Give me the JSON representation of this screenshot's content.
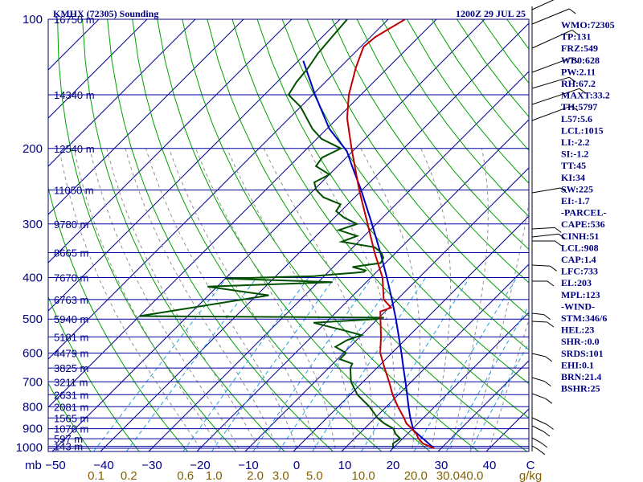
{
  "chart_data": {
    "type": "skew-t sounding",
    "title_left": "KMHX (72305) Sounding",
    "title_right": "1200Z 29 JUL 25",
    "pressure_unit_label": "mb",
    "mixing_ratio_unit_label": "g/kg",
    "plim": [
      1000,
      100
    ],
    "pressure_levels": [
      1000,
      900,
      800,
      700,
      600,
      500,
      400,
      300,
      200,
      100
    ],
    "pressure_labels": [
      "1000",
      "900",
      "800",
      "700",
      "600",
      "500",
      "400",
      "300",
      "200",
      "100"
    ],
    "height_levels": [
      {
        "p": 990,
        "label": "143 m"
      },
      {
        "p": 950,
        "label": "597 m"
      },
      {
        "p": 900,
        "label": "1070 m"
      },
      {
        "p": 850,
        "label": "1565 m"
      },
      {
        "p": 800,
        "label": "2081 m"
      },
      {
        "p": 750,
        "label": "2631 m"
      },
      {
        "p": 700,
        "label": "3211 m"
      },
      {
        "p": 650,
        "label": "3825 m"
      },
      {
        "p": 600,
        "label": "4479 m"
      },
      {
        "p": 550,
        "label": "5181 m"
      },
      {
        "p": 500,
        "label": "5940 m"
      },
      {
        "p": 450,
        "label": "6763 m"
      },
      {
        "p": 400,
        "label": "7670 m"
      },
      {
        "p": 350,
        "label": "8665 m"
      },
      {
        "p": 300,
        "label": "9780 m"
      },
      {
        "p": 250,
        "label": "11050 m"
      },
      {
        "p": 200,
        "label": "12540 m"
      },
      {
        "p": 150,
        "label": "14340 m"
      },
      {
        "p": 100,
        "label": "16750 m"
      }
    ],
    "temp_ticks": [
      -50,
      -40,
      -30,
      -20,
      -10,
      0,
      10,
      20,
      30,
      40
    ],
    "temp_tick_labels": [
      "−50",
      "−40",
      "−30",
      "−20",
      "−10",
      "0",
      "10",
      "20",
      "30",
      "40"
    ],
    "temp_last_label": "C",
    "mixing_ratio_ticks": [
      0.1,
      0.2,
      0.6,
      1.0,
      2.0,
      3.0,
      5.0,
      10.0,
      20.0,
      30.0,
      40.0
    ],
    "mixing_ratio_labels": [
      "0.1",
      "0.2",
      "0.6",
      "1.0",
      "2.0",
      "3.0",
      "5.0",
      "10.0",
      "20.0",
      "30.0",
      "40.0"
    ],
    "temperature_profile": [
      [
        1000,
        28.5
      ],
      [
        975,
        25.2
      ],
      [
        950,
        23.3
      ],
      [
        925,
        21.8
      ],
      [
        900,
        19.8
      ],
      [
        875,
        17.6
      ],
      [
        850,
        16.0
      ],
      [
        800,
        12.4
      ],
      [
        750,
        8.8
      ],
      [
        700,
        5.4
      ],
      [
        650,
        1.6
      ],
      [
        600,
        -2.4
      ],
      [
        550,
        -5.6
      ],
      [
        500,
        -9.4
      ],
      [
        480,
        -11.0
      ],
      [
        470,
        -9.6
      ],
      [
        450,
        -12.8
      ],
      [
        400,
        -17.6
      ],
      [
        350,
        -24.4
      ],
      [
        300,
        -31.8
      ],
      [
        250,
        -40.6
      ],
      [
        200,
        -50.8
      ],
      [
        170,
        -58.0
      ],
      [
        150,
        -62.5
      ],
      [
        130,
        -66.6
      ],
      [
        116,
        -69.4
      ],
      [
        110,
        -69.0
      ],
      [
        100,
        -66.5
      ]
    ],
    "dewpoint_profile": [
      [
        1000,
        20.0
      ],
      [
        975,
        19.0
      ],
      [
        950,
        19.5
      ],
      [
        925,
        17.5
      ],
      [
        900,
        16.0
      ],
      [
        875,
        13.0
      ],
      [
        850,
        10.5
      ],
      [
        800,
        6.5
      ],
      [
        750,
        1.5
      ],
      [
        700,
        -2.5
      ],
      [
        650,
        -5.5
      ],
      [
        635,
        -6.0
      ],
      [
        620,
        -9.5
      ],
      [
        600,
        -9.5
      ],
      [
        580,
        -13.0
      ],
      [
        560,
        -12.0
      ],
      [
        545,
        -10.0
      ],
      [
        530,
        -15.0
      ],
      [
        510,
        -22.5
      ],
      [
        500,
        -10.5
      ],
      [
        496,
        -9.0
      ],
      [
        492,
        -60.0
      ],
      [
        440,
        -37.5
      ],
      [
        420,
        -52.0
      ],
      [
        410,
        -27.0
      ],
      [
        402,
        -50.0
      ],
      [
        397,
        -32.0
      ],
      [
        393,
        -28.0
      ],
      [
        390,
        -24.4
      ],
      [
        388,
        -22.6
      ],
      [
        385,
        -22.6
      ],
      [
        378,
        -26.0
      ],
      [
        370,
        -21.0
      ],
      [
        360,
        -21.5
      ],
      [
        350,
        -23.0
      ],
      [
        340,
        -25.5
      ],
      [
        330,
        -33.5
      ],
      [
        320,
        -31.5
      ],
      [
        310,
        -36.5
      ],
      [
        300,
        -34.0
      ],
      [
        290,
        -38.0
      ],
      [
        280,
        -41.0
      ],
      [
        270,
        -41.5
      ],
      [
        260,
        -46.5
      ],
      [
        250,
        -49.5
      ],
      [
        240,
        -51.5
      ],
      [
        230,
        -50.0
      ],
      [
        220,
        -54.5
      ],
      [
        210,
        -55.0
      ],
      [
        200,
        -53.0
      ],
      [
        190,
        -59.0
      ],
      [
        180,
        -63.0
      ],
      [
        160,
        -70.0
      ],
      [
        150,
        -75.0
      ],
      [
        140,
        -76.0
      ],
      [
        130,
        -76.5
      ],
      [
        120,
        -77.5
      ],
      [
        110,
        -78.0
      ],
      [
        100,
        -78.5
      ]
    ],
    "parcel_profile": [
      [
        1000,
        28.5
      ],
      [
        908,
        20.5
      ],
      [
        850,
        17.3
      ],
      [
        800,
        14.6
      ],
      [
        750,
        11.8
      ],
      [
        700,
        8.8
      ],
      [
        650,
        5.5
      ],
      [
        600,
        2.0
      ],
      [
        550,
        -1.9
      ],
      [
        500,
        -6.2
      ],
      [
        450,
        -11.1
      ],
      [
        400,
        -16.7
      ],
      [
        350,
        -23.2
      ],
      [
        300,
        -30.9
      ],
      [
        250,
        -40.2
      ],
      [
        220,
        -47.0
      ],
      [
        203,
        -51.2
      ],
      [
        180,
        -59.5
      ],
      [
        150,
        -69.5
      ],
      [
        125,
        -79.0
      ]
    ],
    "indices": [
      "WMO:72305",
      "TP:131",
      "FRZ:549",
      "WB0:628",
      "PW:2.11",
      "RH:67.2",
      "MAXT:33.2",
      "TH:5797",
      "L57:5.6",
      "LCL:1015",
      "LI:-2.2",
      "SI:-1.2",
      "TT:45",
      "KI:34",
      "SW:225",
      "EI:-1.7",
      "-PARCEL-",
      "CAPE:536",
      "CINH:51",
      "LCL:908",
      "CAP:1.4",
      "LFC:733",
      "EL:203",
      "MPL:123",
      "-WIND-",
      "STM:346/6",
      "HEL:23",
      "SHR-:0.0",
      "SRDS:101",
      "EHI:0.1",
      "BRN:21.4",
      "BSHR:25"
    ],
    "colors": {
      "isobar": "#0000a0",
      "isotherm": "#000090",
      "dry_adiabat": "#00a000",
      "moist_adiabat": "#909090",
      "mixing_ratio": "#20a0e0",
      "temperature": "#c00000",
      "dewpoint": "#005000",
      "parcel": "#0000c0",
      "wind": "#000000"
    }
  }
}
